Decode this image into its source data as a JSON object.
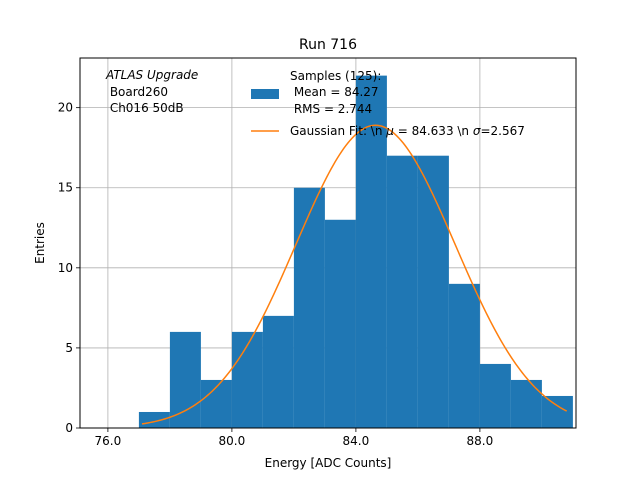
{
  "chart_data": {
    "type": "bar",
    "title": "Run 716",
    "xlabel": "Energy [ADC Counts]",
    "ylabel": "Entries",
    "xlim": [
      75.1,
      91.1
    ],
    "ylim": [
      0,
      23.1
    ],
    "grid": true,
    "xticks": [
      76.0,
      80.0,
      84.0,
      88.0
    ],
    "xtick_labels": [
      "76.0",
      "80.0",
      "84.0",
      "88.0"
    ],
    "yticks": [
      0,
      5,
      10,
      15,
      20
    ],
    "ytick_labels": [
      "0",
      "5",
      "10",
      "15",
      "20"
    ],
    "bin_edges": [
      77,
      78,
      79,
      80,
      81,
      82,
      83,
      84,
      85,
      86,
      87,
      88,
      89,
      90,
      91
    ],
    "bin_counts": [
      1,
      6,
      3,
      6,
      7,
      15,
      13,
      22,
      17,
      17,
      9,
      4,
      3,
      2
    ],
    "fit": {
      "mu": 84.633,
      "sigma": 2.567,
      "amplitude": 18.9,
      "x_range": [
        77.1,
        90.8
      ]
    },
    "annotation_lines": [
      "ATLAS Upgrade",
      " Board260",
      " Ch016 50dB"
    ],
    "legend": {
      "placement": "top-right",
      "histogram_label_lines": [
        "Samples (125):",
        " Mean = 84.27",
        " RMS = 2.744"
      ],
      "fit_label_prefix": "Gaussian Fit: \\n ",
      "fit_label_mu": " = 84.633 \\n ",
      "fit_label_sigma": "=2.567"
    },
    "colors": {
      "histogram": "#1f77b4",
      "fit": "#ff7f0e",
      "grid": "#b0b0b0"
    }
  }
}
